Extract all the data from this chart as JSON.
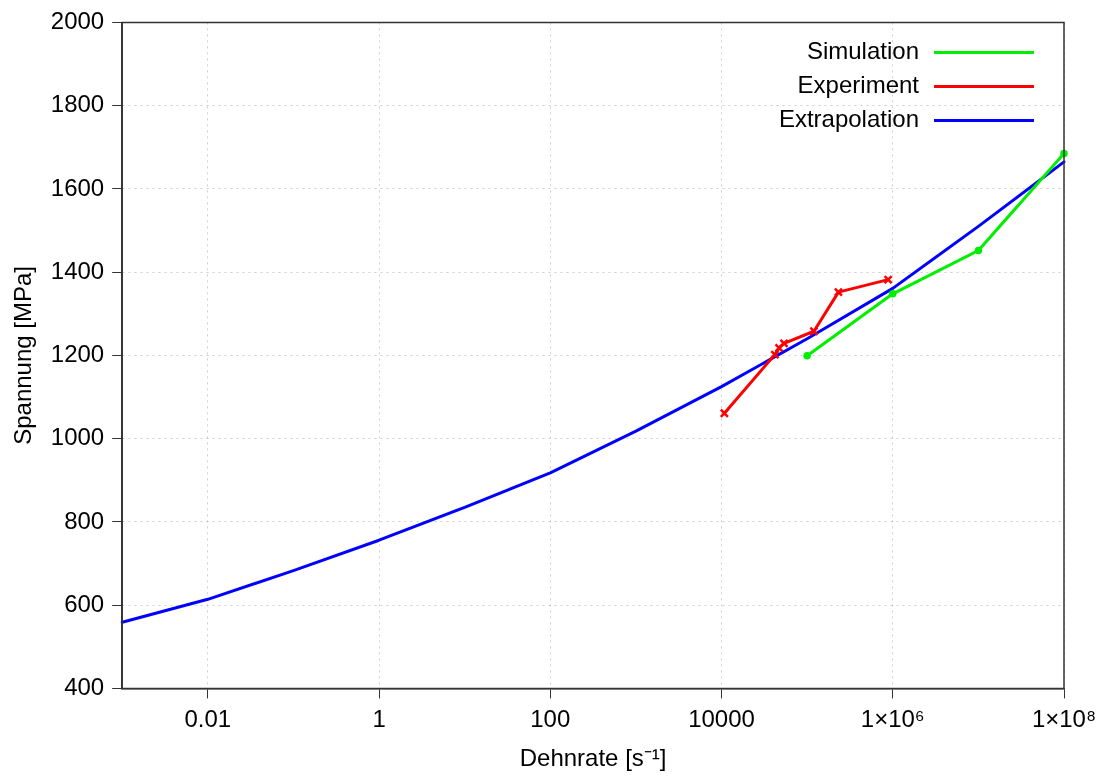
{
  "chart_data": {
    "type": "line",
    "xlabel": "Dehnrate [s⁻¹]",
    "ylabel": "Spannung [MPa]",
    "log": "x",
    "xlim": [
      0.001,
      100000000
    ],
    "xticks": [
      0.01,
      1,
      100,
      10000,
      {
        "value": 1000000,
        "label": "1×10⁶"
      },
      {
        "value": 100000000,
        "label": "1×10⁸"
      }
    ],
    "ylim": [
      400,
      2000
    ],
    "yticks": [
      400,
      600,
      800,
      1000,
      1200,
      1400,
      1600,
      1800,
      2000
    ],
    "grid": true,
    "legend": "top right",
    "line_style": "solid",
    "series": [
      {
        "name": "Simulation",
        "color": "#00ee00",
        "marker": "circle",
        "x": [
          100000,
          1000000,
          10000000,
          100000000
        ],
        "values": [
          1199,
          1348,
          1452,
          1685
        ]
      },
      {
        "name": "Experiment",
        "color": "#ff0000",
        "marker": "cross",
        "x": [
          10800,
          42000,
          47000,
          53700,
          120000,
          232000,
          883000
        ],
        "values": [
          1061,
          1202,
          1218,
          1229,
          1258,
          1352,
          1382
        ]
      },
      {
        "name": "Extrapolation",
        "color": "#0000ff",
        "marker": "none",
        "x": [
          0.001,
          0.01,
          0.1,
          1,
          10,
          100,
          1000,
          10000,
          100000,
          1000000,
          10000000,
          100000000
        ],
        "values": [
          559,
          614,
          683,
          756,
          835,
          918,
          1018,
          1125,
          1240,
          1361,
          1510,
          1665
        ]
      }
    ]
  }
}
